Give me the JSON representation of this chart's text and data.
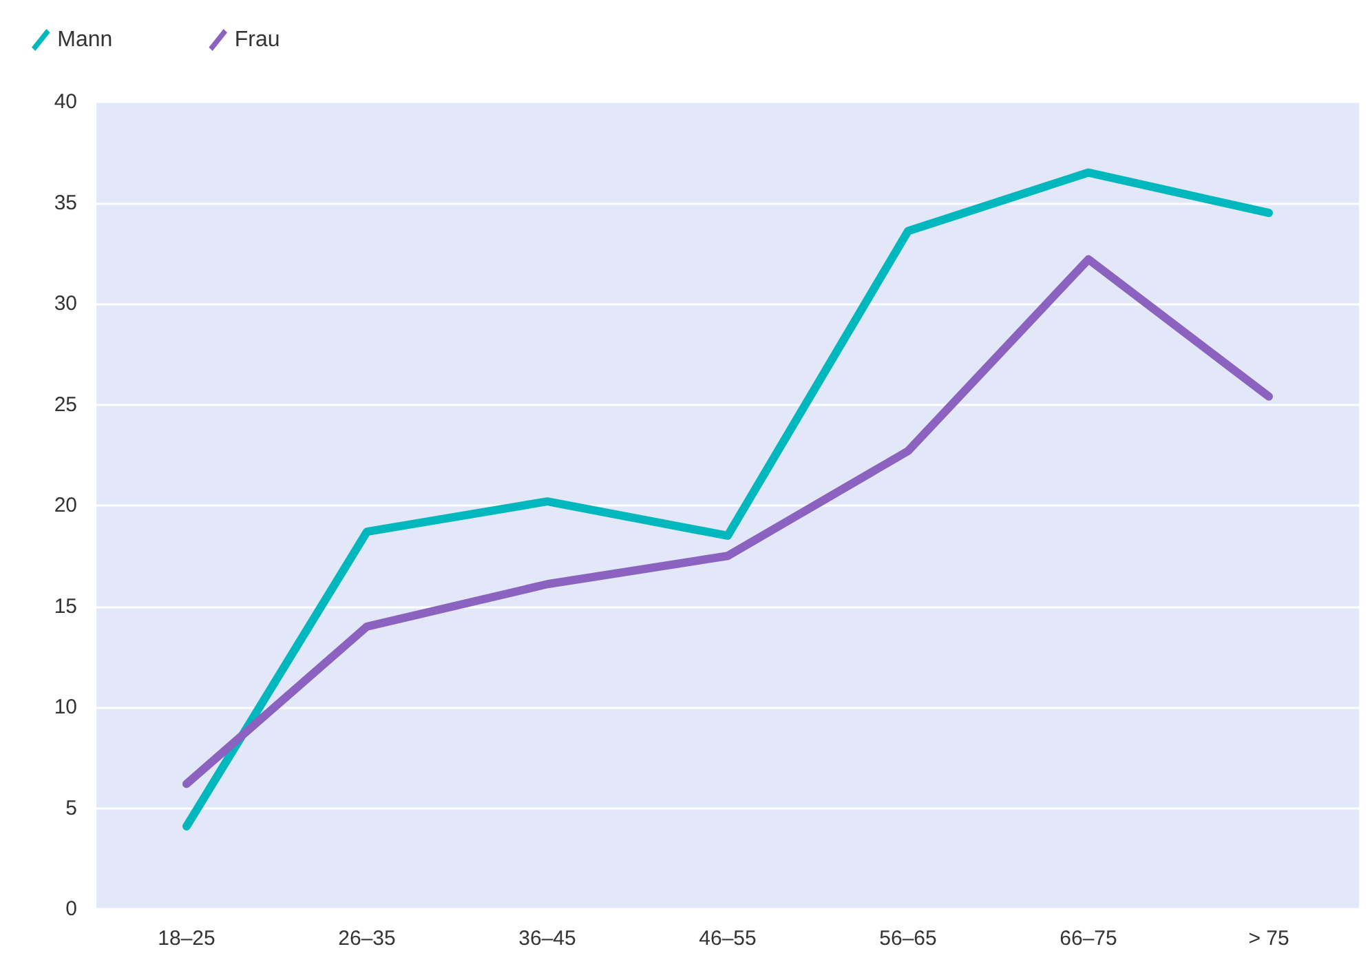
{
  "chart_data": {
    "type": "line",
    "categories": [
      "18–25",
      "26–35",
      "36–45",
      "46–55",
      "56–65",
      "66–75",
      "> 75"
    ],
    "series": [
      {
        "name": "Mann",
        "color": "#00b7bd",
        "values": [
          4.1,
          18.7,
          20.2,
          18.5,
          33.6,
          36.5,
          34.5
        ]
      },
      {
        "name": "Frau",
        "color": "#8b62bf",
        "values": [
          6.2,
          14.0,
          16.1,
          17.5,
          22.7,
          32.2,
          25.4
        ]
      }
    ],
    "ylim": [
      0,
      40
    ],
    "yticks": [
      0,
      5,
      10,
      15,
      20,
      25,
      30,
      35,
      40
    ],
    "grid": "y",
    "legend": "top left",
    "marker": "none",
    "line_style": "solid"
  }
}
